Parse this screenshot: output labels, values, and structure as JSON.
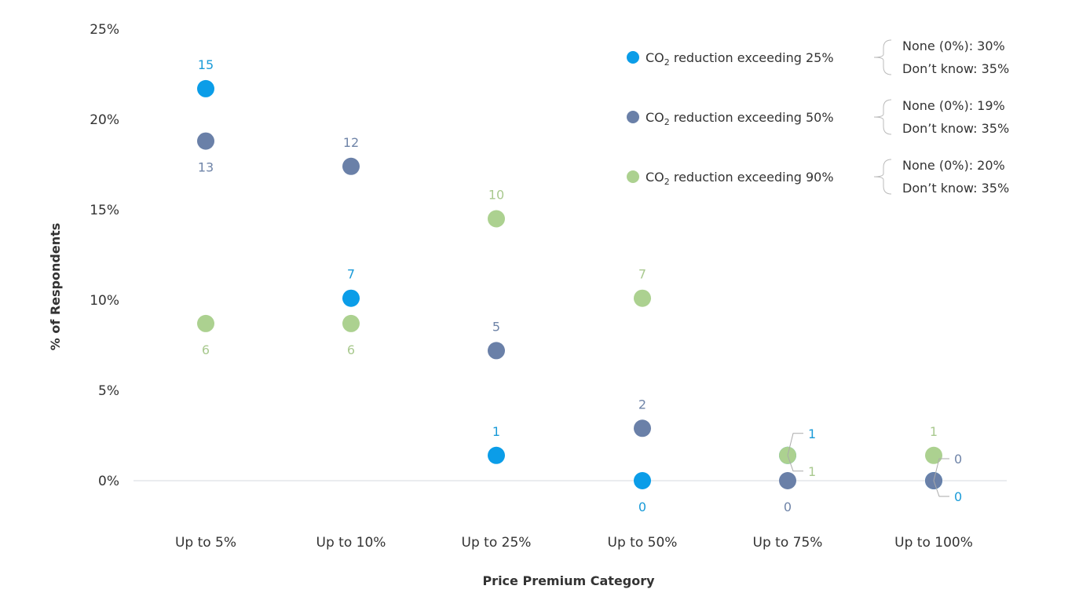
{
  "chart_data": {
    "type": "scatter",
    "xlabel": "Price Premium Category",
    "ylabel": "% of Respondents",
    "ylim": [
      0,
      25
    ],
    "y_ticks": [
      "0%",
      "5%",
      "10%",
      "15%",
      "20%",
      "25%"
    ],
    "y_tick_values": [
      0,
      5,
      10,
      15,
      20,
      25
    ],
    "grid": "baseline only",
    "legend_placement": "top-right",
    "categories": [
      "Up to 5%",
      "Up to 10%",
      "Up to 25%",
      "Up to 50%",
      "Up to 75%",
      "Up to 100%"
    ],
    "series": [
      {
        "name": "CO2 reduction exceeding 25%",
        "name_prefix": "CO",
        "name_sub": "2",
        "name_suffix": " reduction exceeding 25%",
        "color": "#0b9de8",
        "label_color": "#1a9bd8",
        "values": [
          21.7,
          10.1,
          1.4,
          0,
          1.4,
          0
        ],
        "counts": [
          15,
          7,
          1,
          0,
          1,
          0
        ],
        "note_none": "None (0%): 30%",
        "note_dontknow": "Don’t know: 35%"
      },
      {
        "name": "CO2 reduction exceeding 50%",
        "name_prefix": "CO",
        "name_sub": "2",
        "name_suffix": " reduction exceeding 50%",
        "color": "#6a80a8",
        "label_color": "#6f84a8",
        "values": [
          18.8,
          17.4,
          7.2,
          2.9,
          0,
          0
        ],
        "counts": [
          13,
          12,
          5,
          2,
          0,
          0
        ],
        "note_none": "None (0%): 19%",
        "note_dontknow": "Don’t know: 35%"
      },
      {
        "name": "CO2 reduction exceeding 90%",
        "name_prefix": "CO",
        "name_sub": "2",
        "name_suffix": " reduction exceeding 90%",
        "color": "#acd190",
        "label_color": "#a9c98f",
        "values": [
          8.7,
          8.7,
          14.5,
          10.1,
          1.4,
          1.4
        ],
        "counts": [
          6,
          6,
          10,
          7,
          1,
          1
        ],
        "note_none": "None (0%): 20%",
        "note_dontknow": "Don’t know: 35%"
      }
    ]
  }
}
